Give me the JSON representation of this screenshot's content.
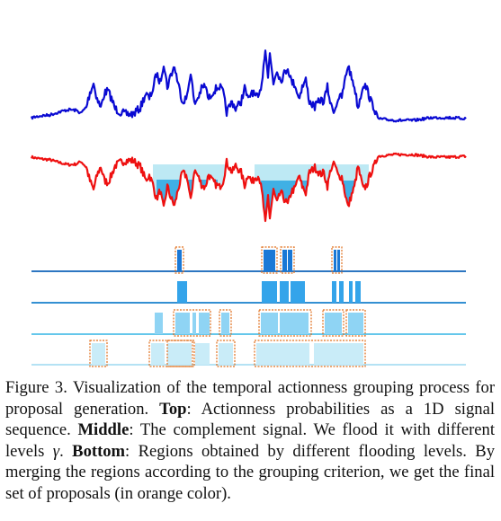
{
  "figure": {
    "colors": {
      "top_signal": "#0a0ad2",
      "complement_signal": "#ee1010",
      "flood_fill": "#bde9f4",
      "flood_fill_dark": "#2aa6e2",
      "bar_darkest": "#1a78d6",
      "bar_mid": "#34a4ea",
      "bar_light": "#8fd4f4",
      "bar_lightest": "#c9ecf8",
      "level_line_1": "#0f63b8",
      "level_line_2": "#1780cc",
      "level_line_3": "#4fbfe8",
      "level_line_4": "#a9def2",
      "proposal_box": "#e0701e"
    }
  },
  "caption": {
    "label": "Figure 3.",
    "text1": " Visualization of the temporal actionness grouping process for proposal generation. ",
    "top_label": "Top",
    "text2": ": Actionness probabilities as a 1D signal sequence. ",
    "middle_label": "Middle",
    "text3": ": The complement signal. We flood it with different levels ",
    "gamma": "γ",
    "text4": ". ",
    "bottom_label": "Bottom",
    "text5": ": Regions obtained by different flooding levels. By merging the regions according to the grouping criterion, we get the final set of proposals (in orange color)."
  }
}
